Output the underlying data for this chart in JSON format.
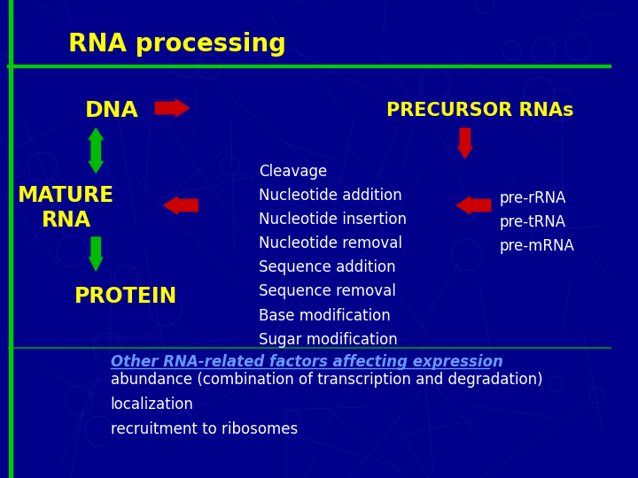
{
  "bg_color": "#00008B",
  "title": "RNA processing",
  "title_color": "#FFFF00",
  "title_fontsize": 20,
  "green_bar_color": "#00CC00",
  "header_line_color": "#00CC00",
  "dna_label": "DNA",
  "mature_rna_label": "MATURE\nRNA",
  "protein_label": "PROTEIN",
  "precursor_label": "PRECURSOR RNAs",
  "pre_rnas": "pre-rRNA\npre-tRNA\npre-mRNA",
  "processing_list": "Cleavage\nNucleotide addition\nNucleotide insertion\nNucleotide removal\nSequence addition\nSequence removal\nBase modification\nSugar modification",
  "other_title": "Other RNA-related factors affecting expression",
  "other_items": "abundance (combination of transcription and degradation)\nlocalization\nrecruitment to ribosomes",
  "label_color": "#FFFFFF",
  "yellow_label_color": "#FFFF00",
  "other_title_color": "#6699FF",
  "arrow_red": "#CC0000",
  "arrow_green": "#00BB00"
}
